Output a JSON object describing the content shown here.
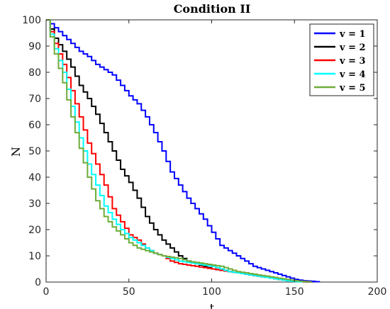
{
  "chart_data": {
    "type": "line",
    "title": "Condition II",
    "xlabel": "t",
    "ylabel": "N",
    "xlim": [
      0,
      200
    ],
    "ylim": [
      0,
      100
    ],
    "xticks": [
      "0",
      "50",
      "100",
      "150",
      "200"
    ],
    "yticks": [
      "0",
      "10",
      "20",
      "30",
      "40",
      "50",
      "60",
      "70",
      "80",
      "90",
      "100"
    ],
    "grid": false,
    "legend_position": "top-right",
    "series": [
      {
        "name": "v = 1",
        "color": "#0000ff",
        "x": [
          0,
          5,
          10,
          15,
          20,
          25,
          30,
          35,
          40,
          45,
          50,
          55,
          60,
          65,
          70,
          75,
          80,
          85,
          90,
          95,
          100,
          105,
          110,
          115,
          120,
          125,
          130,
          135,
          140,
          145,
          150,
          155,
          160,
          165
        ],
        "y": [
          100,
          97,
          94,
          91,
          88,
          86,
          83,
          81,
          79,
          75,
          71,
          68,
          63,
          57,
          50,
          42,
          37,
          32,
          28,
          24,
          19,
          14,
          12,
          10,
          8,
          6,
          5,
          4,
          3,
          2,
          1,
          0.5,
          0.3,
          0
        ]
      },
      {
        "name": "v = 2",
        "color": "#000000",
        "x": [
          0,
          5,
          10,
          15,
          20,
          25,
          30,
          35,
          40,
          45,
          50,
          55,
          60,
          65,
          70,
          75,
          80,
          85,
          90,
          95,
          100,
          105,
          110,
          115,
          120,
          125,
          130,
          135,
          140,
          145,
          150,
          155,
          160
        ],
        "y": [
          100,
          93,
          88,
          82,
          75,
          70,
          64,
          57,
          50,
          43,
          38,
          32,
          25,
          20,
          16,
          13,
          10,
          8,
          7,
          6,
          5,
          4.5,
          4,
          3.5,
          3,
          2.5,
          2,
          1.5,
          1,
          0.6,
          0.3,
          0.1,
          0
        ]
      },
      {
        "name": "v = 3",
        "color": "#ff0000",
        "x": [
          0,
          5,
          10,
          15,
          20,
          25,
          30,
          35,
          40,
          45,
          50,
          55,
          60,
          65,
          70,
          75,
          80,
          85,
          90,
          95,
          100,
          105,
          110,
          115,
          120,
          125,
          130,
          135,
          140,
          145,
          150,
          155,
          160
        ],
        "y": [
          100,
          91,
          83,
          73,
          63,
          53,
          45,
          37,
          28,
          23,
          18,
          16,
          13,
          11,
          10,
          8,
          7,
          6.5,
          6,
          5.5,
          5,
          4.5,
          4,
          3.5,
          3,
          2.5,
          2,
          1.5,
          1,
          0.7,
          0.4,
          0.2,
          0
        ]
      },
      {
        "name": "v = 4",
        "color": "#00ffff",
        "x": [
          0,
          5,
          10,
          15,
          20,
          25,
          30,
          35,
          40,
          45,
          50,
          55,
          60,
          65,
          70,
          75,
          80,
          85,
          90,
          95,
          100,
          105,
          110,
          115,
          120,
          125,
          130,
          135,
          140,
          145,
          150,
          155
        ],
        "y": [
          100,
          89,
          80,
          67,
          55,
          45,
          37,
          29,
          24,
          20,
          17,
          15,
          13,
          11,
          10,
          9,
          8,
          7.5,
          7,
          6.5,
          6,
          5,
          4,
          3.5,
          3,
          2.5,
          2,
          1.5,
          1,
          0.5,
          0.2,
          0
        ]
      },
      {
        "name": "v = 5",
        "color": "#6fac3a",
        "x": [
          0,
          5,
          10,
          15,
          20,
          25,
          30,
          35,
          40,
          45,
          50,
          55,
          60,
          65,
          70,
          75,
          80,
          85,
          90,
          95,
          100,
          105,
          110,
          115,
          120,
          125,
          130,
          135,
          140,
          145,
          150,
          155,
          160
        ],
        "y": [
          100,
          87,
          76,
          63,
          51,
          40,
          31,
          25,
          21,
          18,
          15,
          13,
          12,
          11,
          10,
          9.5,
          9,
          8,
          7.5,
          7,
          6.5,
          6,
          5,
          4,
          3.5,
          3,
          2.5,
          2,
          1.5,
          1,
          0.5,
          0.2,
          0
        ]
      }
    ]
  }
}
